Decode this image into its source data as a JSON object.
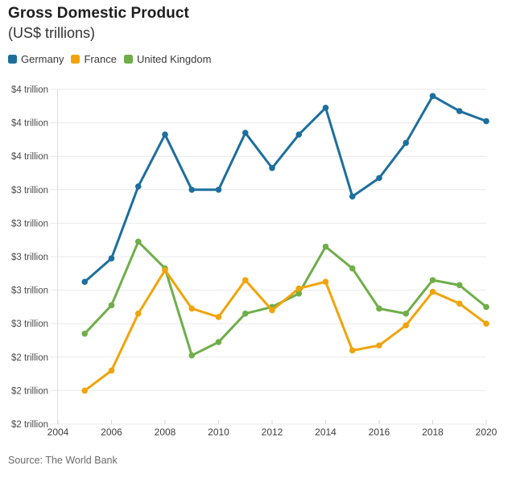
{
  "header": {
    "title": "Gross Domestic Product",
    "subtitle": "(US$ trillions)"
  },
  "legend": {
    "items": [
      {
        "label": "Germany",
        "color": "#1d6f9d"
      },
      {
        "label": "France",
        "color": "#f0a40a"
      },
      {
        "label": "United Kingdom",
        "color": "#6fae49"
      }
    ]
  },
  "source": {
    "text": "Source: The World Bank"
  },
  "colors": {
    "germany": "#1d6f9d",
    "france": "#f0a40a",
    "united_kingdom": "#6fae49",
    "gridline": "#e9e9e9",
    "axis_line": "#dedede",
    "tick": "#d5d5d5"
  },
  "chart_data": {
    "type": "line",
    "title": "Gross Domestic Product",
    "subtitle": "(US$ trillions)",
    "unit": "US$ trillions",
    "x": [
      2005,
      2006,
      2007,
      2008,
      2009,
      2010,
      2011,
      2012,
      2013,
      2014,
      2015,
      2016,
      2017,
      2018,
      2019,
      2020
    ],
    "series": [
      {
        "name": "Germany",
        "color": "#1d6f9d",
        "values": [
          2.85,
          2.99,
          3.42,
          3.73,
          3.4,
          3.4,
          3.74,
          3.53,
          3.73,
          3.89,
          3.36,
          3.47,
          3.68,
          3.96,
          3.87,
          3.81
        ]
      },
      {
        "name": "France",
        "color": "#f0a40a",
        "values": [
          2.2,
          2.32,
          2.66,
          2.92,
          2.69,
          2.64,
          2.86,
          2.68,
          2.81,
          2.85,
          2.44,
          2.47,
          2.59,
          2.79,
          2.72,
          2.6
        ]
      },
      {
        "name": "United Kingdom",
        "color": "#6fae49",
        "values": [
          2.54,
          2.71,
          3.09,
          2.93,
          2.41,
          2.49,
          2.66,
          2.7,
          2.78,
          3.06,
          2.93,
          2.69,
          2.66,
          2.86,
          2.83,
          2.7
        ]
      }
    ],
    "ylim": [
      2.0,
      4.0
    ],
    "ytick_step": 0.2,
    "ytick_labels_top_to_bottom": [
      "$4 trillion",
      "$4 trillion",
      "$4 trillion",
      "$3 trillion",
      "$3 trillion",
      "$3 trillion",
      "$3 trillion",
      "$3 trillion",
      "$2 trillion",
      "$2 trillion",
      "$2 trillion"
    ],
    "xticks": [
      2004,
      2006,
      2008,
      2010,
      2012,
      2014,
      2016,
      2018,
      2020
    ],
    "grid": true,
    "legend_position": "top-left"
  }
}
